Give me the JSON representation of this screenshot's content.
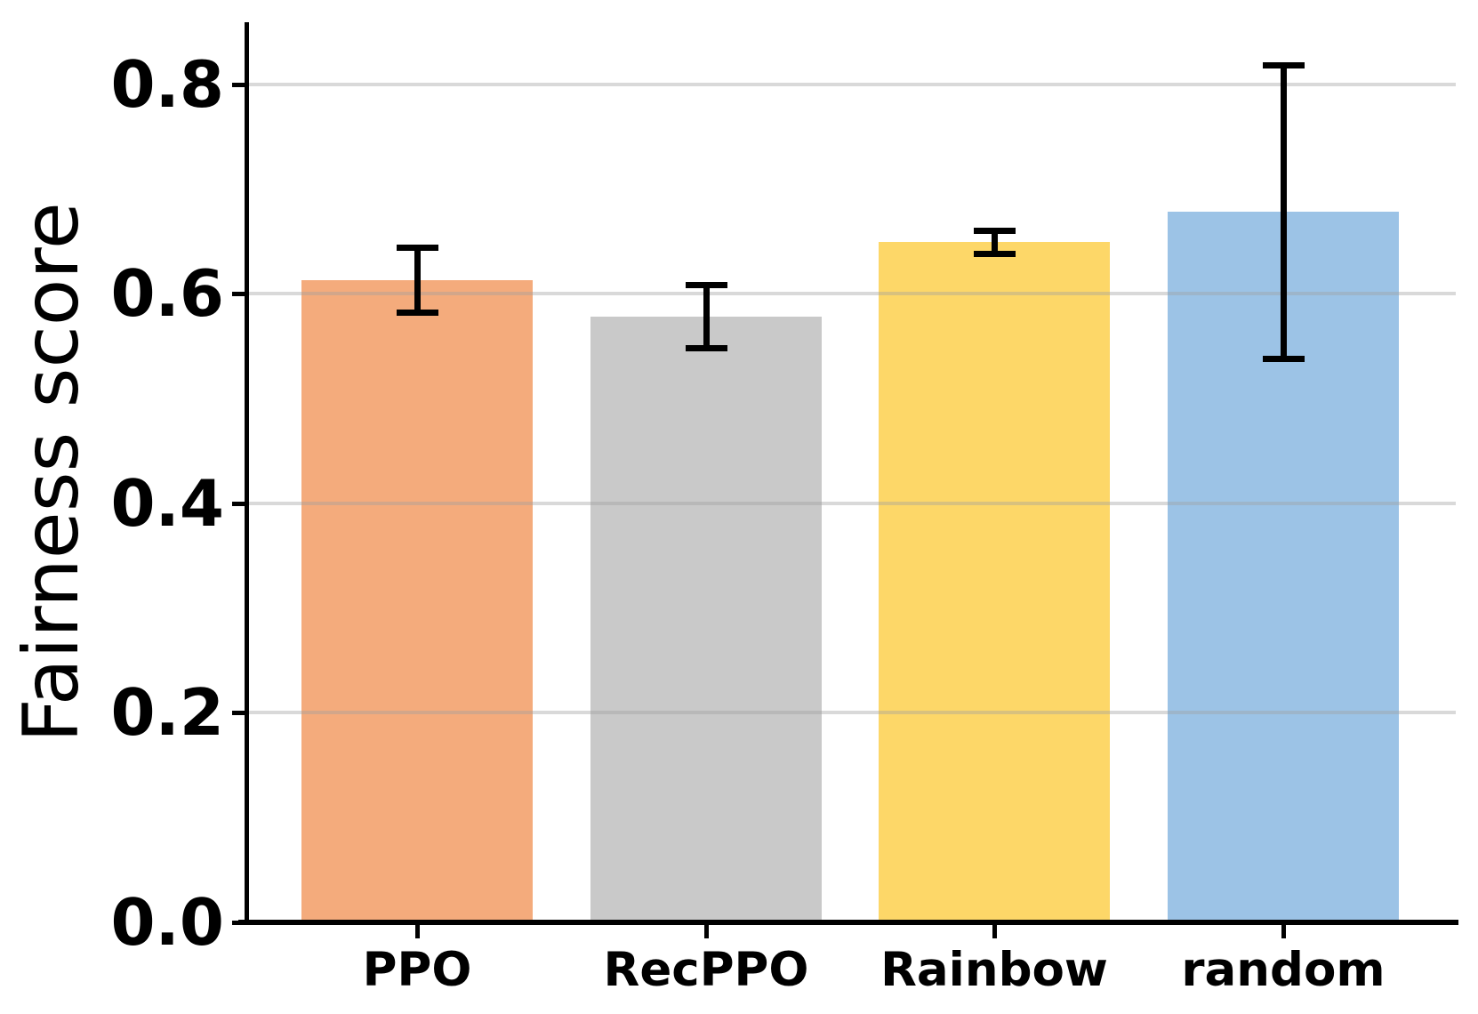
{
  "chart_data": {
    "type": "bar",
    "title": "",
    "xlabel": "",
    "ylabel": "Fairness score",
    "categories": [
      "PPO",
      "RecPPO",
      "Rainbow",
      "random"
    ],
    "series": [
      {
        "name": "Fairness score",
        "values": [
          0.613,
          0.578,
          0.649,
          0.678
        ],
        "error_bars": [
          0.031,
          0.03,
          0.011,
          0.14
        ]
      }
    ],
    "bar_colors": [
      "#F4AB7C",
      "#C9C9C9",
      "#FDD768",
      "#9CC3E6"
    ],
    "error_bar_color": "#000000",
    "yticks": [
      0.0,
      0.2,
      0.4,
      0.6,
      0.8
    ],
    "ytick_labels": [
      "0.0",
      "0.2",
      "0.4",
      "0.6",
      "0.8"
    ],
    "ylim": [
      0.0,
      0.86
    ],
    "grid": "horizontal gridlines at yticks, light gray, drawn over bars",
    "legend": "none",
    "background_color": "#FFFFFF",
    "axis_color": "#000000"
  }
}
